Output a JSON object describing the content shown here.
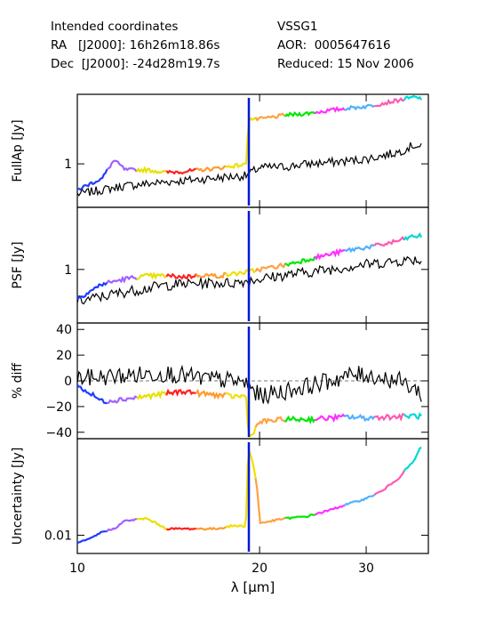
{
  "header": {
    "left": [
      "Intended coordinates",
      "RA   [J2000]: 16h26m18.86s",
      "Dec  [J2000]: -24d28m19.7s"
    ],
    "right": [
      "VSSG1",
      "AOR:  0005647616",
      "Reduced: 15 Nov 2006"
    ]
  },
  "x_axis": {
    "label": "λ [μm]",
    "scale": "log",
    "range": [
      10,
      38
    ],
    "ticks": [
      10,
      20,
      30
    ],
    "tick_labels": [
      "10",
      "20",
      "30"
    ]
  },
  "colors": {
    "order_palette": [
      "#1f3cff",
      "#a060ff",
      "#e8e000",
      "#ff2020",
      "#ff9a30",
      "#f0e000",
      "#ffa040",
      "#00e800",
      "#ff30ff",
      "#50b0ff",
      "#ff5ab0",
      "#00d8d8"
    ],
    "comparison": "#000000",
    "long_module_first_order": "#0018d8"
  },
  "chart_data": [
    {
      "type": "line",
      "ylabel": "FullAp [Jy]",
      "yscale": "log",
      "ylim": [
        0.55,
        2.6
      ],
      "yticks": [
        1
      ],
      "ytick_labels": [
        "1"
      ],
      "series": [
        {
          "color": "black",
          "x": [
            10,
            12,
            14,
            16,
            18,
            19,
            20,
            22,
            24,
            26,
            28,
            30,
            32,
            34,
            36,
            37
          ],
          "y": [
            0.66,
            0.74,
            0.78,
            0.81,
            0.84,
            0.85,
            0.95,
            0.96,
            1.0,
            1.02,
            1.04,
            1.07,
            1.12,
            1.18,
            1.3,
            1.25
          ]
        },
        {
          "color": "colored",
          "x": [
            10,
            11,
            11.5,
            12,
            13,
            14,
            15,
            16,
            17,
            18,
            19,
            19.2,
            20,
            22,
            24,
            26,
            28,
            30,
            32,
            34,
            36,
            37
          ],
          "y": [
            0.7,
            0.82,
            1.05,
            0.92,
            0.92,
            0.89,
            0.9,
            0.92,
            0.94,
            0.97,
            0.99,
            1.85,
            1.85,
            1.95,
            2.0,
            2.08,
            2.15,
            2.2,
            2.3,
            2.4,
            2.5,
            2.45
          ]
        }
      ]
    },
    {
      "type": "line",
      "ylabel": "PSF [Jy]",
      "yscale": "log",
      "ylim": [
        0.55,
        2.0
      ],
      "yticks": [
        1
      ],
      "ytick_labels": [
        "1"
      ],
      "series": [
        {
          "color": "black",
          "x": [
            10,
            12,
            14,
            16,
            18,
            19,
            20,
            22,
            24,
            26,
            28,
            30,
            32,
            34,
            36,
            37
          ],
          "y": [
            0.7,
            0.78,
            0.84,
            0.86,
            0.86,
            0.88,
            0.9,
            0.94,
            0.97,
            1.0,
            1.03,
            1.06,
            1.08,
            1.1,
            1.12,
            1.1
          ]
        },
        {
          "color": "colored",
          "x": [
            10,
            11,
            12,
            13,
            14,
            15,
            16,
            17,
            18,
            19,
            20,
            22,
            24,
            26,
            28,
            30,
            32,
            34,
            36,
            37
          ],
          "y": [
            0.72,
            0.85,
            0.9,
            0.93,
            0.93,
            0.92,
            0.94,
            0.93,
            0.95,
            0.97,
            1.0,
            1.05,
            1.12,
            1.18,
            1.24,
            1.28,
            1.32,
            1.38,
            1.45,
            1.45
          ]
        }
      ]
    },
    {
      "type": "line",
      "ylabel": "% diff",
      "yscale": "linear",
      "ylim": [
        -45,
        45
      ],
      "yticks": [
        -40,
        -20,
        0,
        20,
        40
      ],
      "ytick_labels": [
        "−40",
        "−20",
        "0",
        "20",
        "40"
      ],
      "reference_line": 0,
      "series": [
        {
          "color": "black",
          "x": [
            10,
            12,
            14,
            16,
            18,
            19,
            20,
            22,
            24,
            26,
            28,
            30,
            32,
            34,
            36,
            37
          ],
          "y": [
            2,
            4,
            6,
            2,
            0,
            -2,
            -12,
            -8,
            -4,
            0,
            4,
            5,
            2,
            0,
            -6,
            -10
          ]
        },
        {
          "color": "colored",
          "x": [
            10,
            11,
            12,
            13,
            14,
            15,
            16,
            17,
            18,
            19,
            19.2,
            20,
            22,
            24,
            26,
            28,
            30,
            32,
            34,
            36,
            37
          ],
          "y": [
            -4,
            -16,
            -14,
            -12,
            -10,
            -8,
            -10,
            -11,
            -12,
            -12,
            -45,
            -32,
            -30,
            -30,
            -29,
            -28,
            -29,
            -28,
            -28,
            -27,
            -28
          ]
        }
      ]
    },
    {
      "type": "line",
      "ylabel": "Uncertainty [Jy]",
      "yscale": "log",
      "ylim": [
        0.006,
        0.15
      ],
      "yticks": [
        0.01
      ],
      "ytick_labels": [
        "0.01"
      ],
      "series": [
        {
          "color": "colored",
          "x": [
            10,
            10.5,
            11,
            11.5,
            12,
            13,
            14,
            15,
            16,
            17,
            18,
            19,
            19.2,
            20,
            22,
            24,
            26,
            28,
            30,
            32,
            34,
            36,
            37
          ],
          "y": [
            0.008,
            0.009,
            0.011,
            0.012,
            0.015,
            0.016,
            0.012,
            0.012,
            0.012,
            0.012,
            0.013,
            0.013,
            0.11,
            0.014,
            0.016,
            0.017,
            0.02,
            0.024,
            0.028,
            0.035,
            0.05,
            0.08,
            0.12
          ]
        }
      ]
    }
  ]
}
